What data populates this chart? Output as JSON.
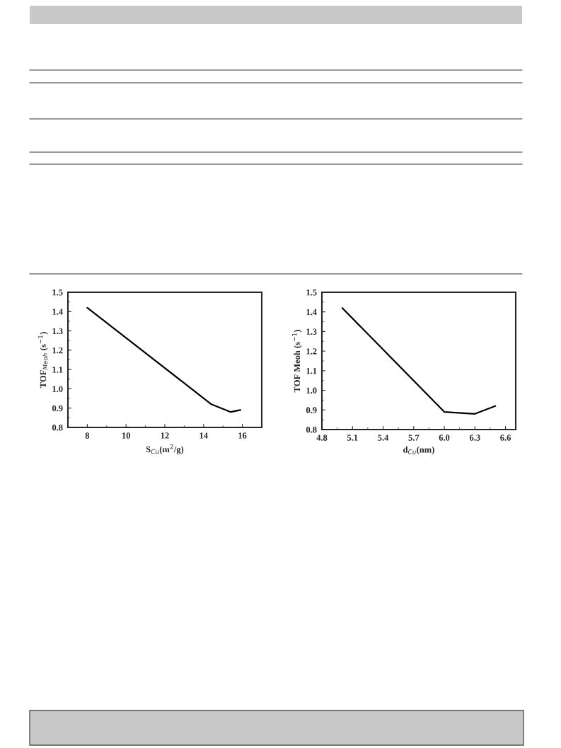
{
  "chart_data": [
    {
      "type": "line",
      "xlabel": "S$_{Cu}$(m$^{2}$/g)",
      "ylabel": "TOF$_{Meoh}$ (s$^{−1}$)",
      "series": [
        {
          "color": "#000000",
          "x": [
            8,
            14.4,
            15.4,
            15.9
          ],
          "values": [
            1.42,
            0.92,
            0.88,
            0.89
          ]
        }
      ],
      "xlim": [
        7,
        17
      ],
      "xticks": [
        8,
        10,
        12,
        14,
        16
      ],
      "ylim": [
        0.8,
        1.5
      ],
      "yticks": [
        0.8,
        0.9,
        {
          "value": 1,
          "label": "1.0"
        },
        1.1,
        1.2,
        1.3,
        1.4,
        1.5
      ],
      "grid": false,
      "line_style": "solid"
    },
    {
      "type": "line",
      "xlabel": "d$_{Cu}$(nm)",
      "ylabel": "TOF Meoh (s$^{−1}$)",
      "series": [
        {
          "color": "#000000",
          "x": [
            5.0,
            6.0,
            6.3,
            6.5
          ],
          "values": [
            1.42,
            0.89,
            0.88,
            0.92
          ]
        }
      ],
      "xlim": [
        4.8,
        6.7
      ],
      "xticks": [
        4.8,
        5.1,
        5.4,
        5.7,
        {
          "value": 6,
          "label": "6.0"
        },
        6.3,
        6.6
      ],
      "ylim": [
        0.8,
        1.5
      ],
      "yticks": [
        0.8,
        0.9,
        {
          "value": 1,
          "label": "1.0"
        },
        1.1,
        1.2,
        1.3,
        1.4,
        1.5
      ],
      "grid": false,
      "line_style": "solid"
    }
  ]
}
